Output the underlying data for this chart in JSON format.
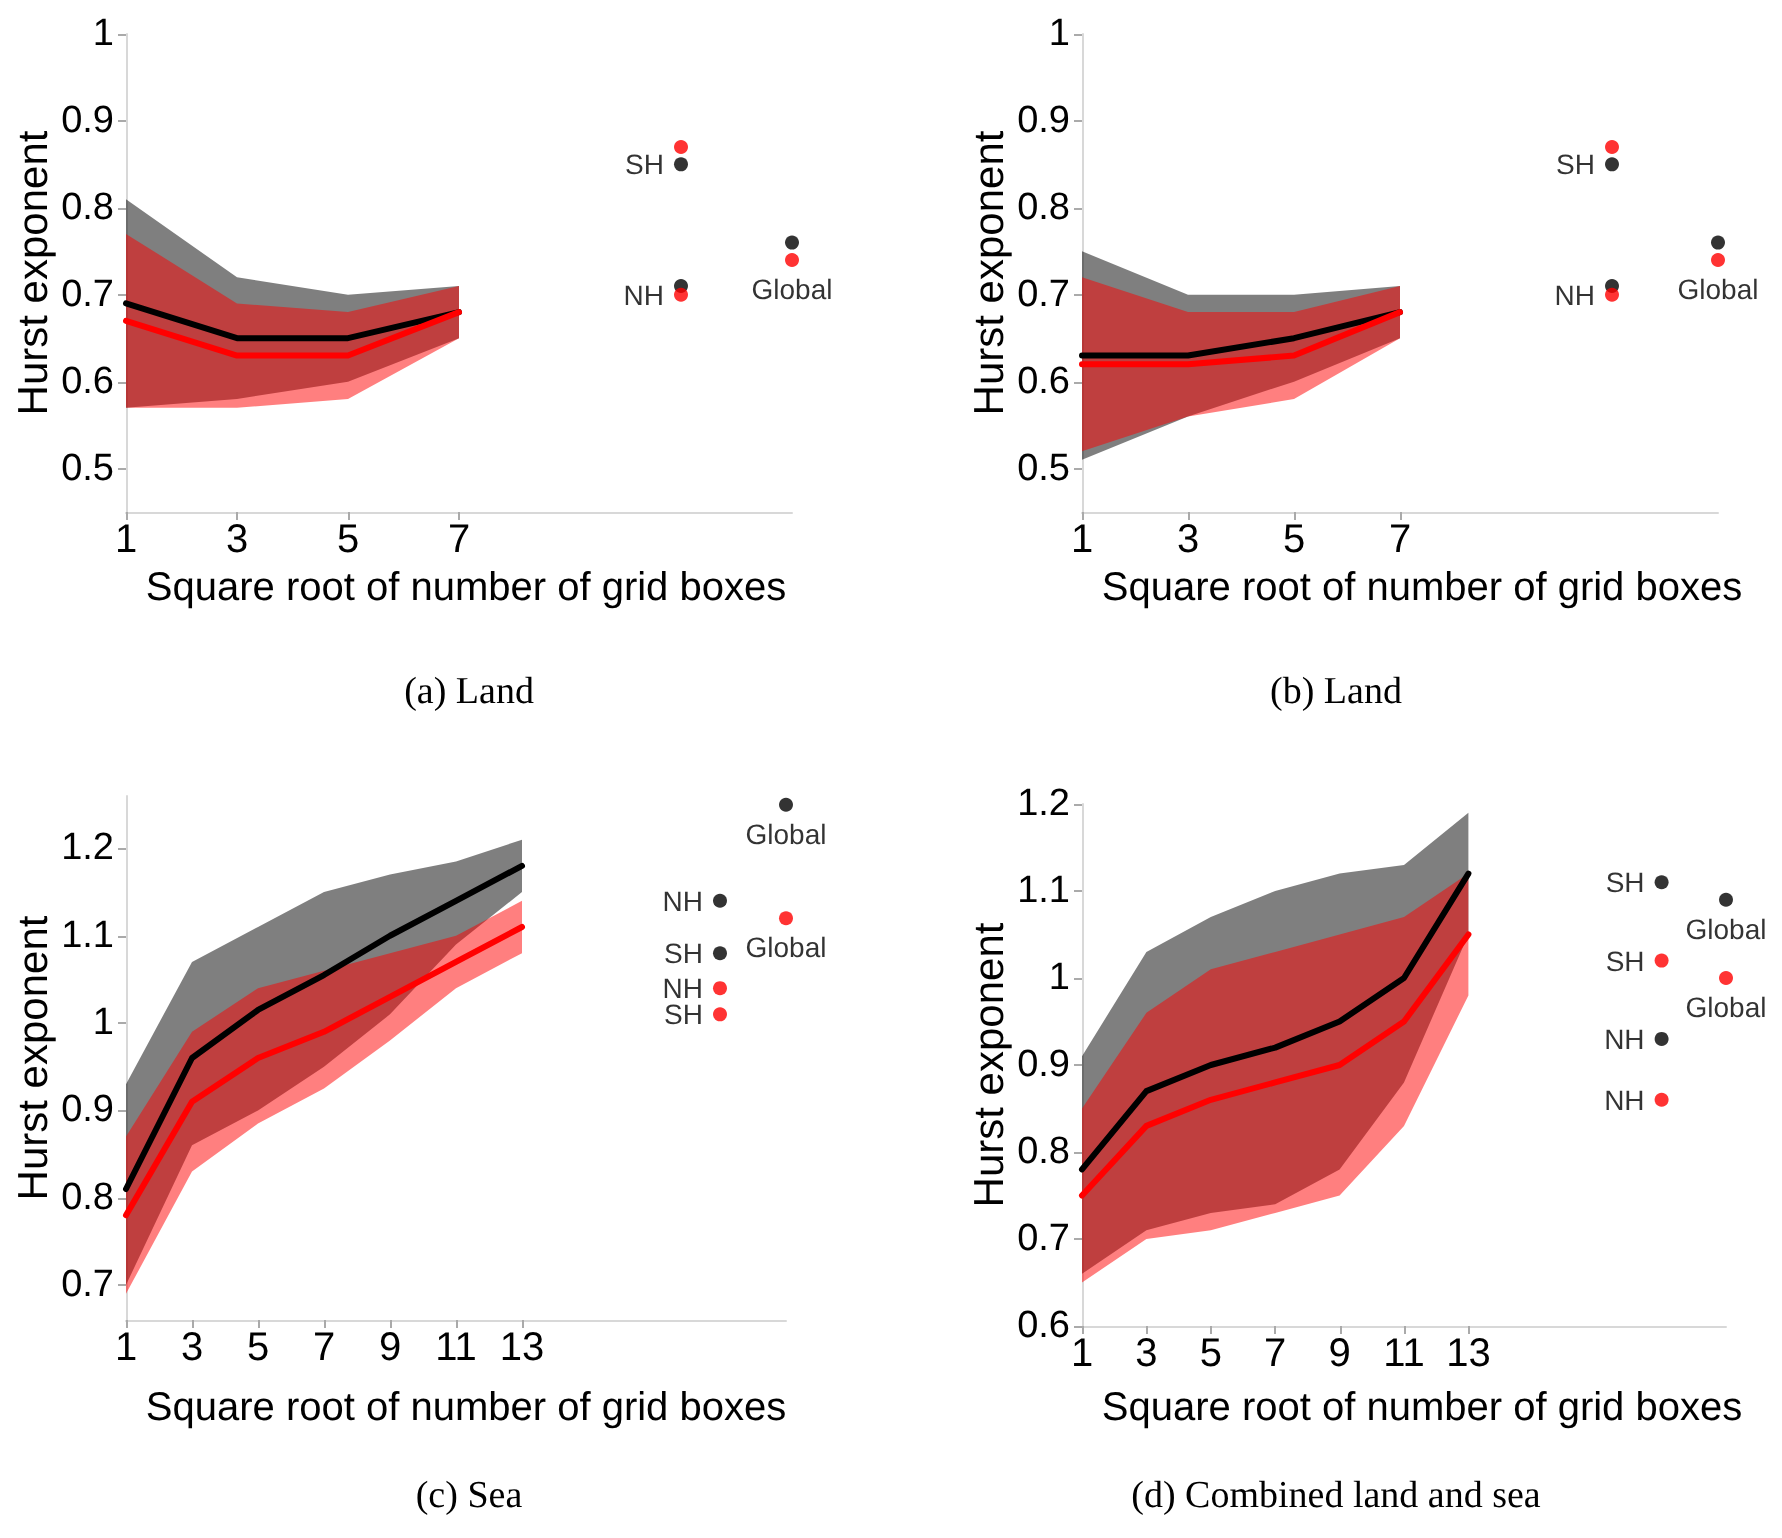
{
  "chart_data": [
    {
      "type": "line",
      "title": "(a) Land",
      "xlabel": "Square root of number of grid boxes",
      "ylabel": "Hurst exponent",
      "x": [
        1,
        3,
        5,
        7
      ],
      "xlim": [
        1,
        13
      ],
      "xticks": [
        1,
        3,
        5,
        7
      ],
      "ylim": [
        0.45,
        1
      ],
      "yticks": [
        0.5,
        0.6,
        0.7,
        0.8,
        0.9,
        1
      ],
      "series": [
        {
          "color": "#000000",
          "values": [
            0.69,
            0.65,
            0.65,
            0.68
          ],
          "lower": [
            0.57,
            0.58,
            0.6,
            0.65
          ],
          "upper": [
            0.81,
            0.72,
            0.7,
            0.71
          ]
        },
        {
          "color": "#ff0000",
          "values": [
            0.67,
            0.63,
            0.63,
            0.68
          ],
          "lower": [
            0.57,
            0.57,
            0.58,
            0.65
          ],
          "upper": [
            0.77,
            0.69,
            0.68,
            0.71
          ]
        },
        {
          "type": "scatter",
          "marker": "circle",
          "color": "#000000",
          "x": [
            11,
            11,
            13
          ],
          "values": [
            0.85,
            0.71,
            0.76
          ],
          "value_labels": [
            "SH",
            null,
            null
          ]
        },
        {
          "type": "scatter",
          "marker": "circle",
          "color": "#ff0000",
          "x": [
            11,
            11,
            13
          ],
          "values": [
            0.87,
            0.7,
            0.74
          ],
          "value_labels": [
            null,
            "NH",
            "Global"
          ]
        }
      ]
    },
    {
      "type": "line",
      "title": "(b) Land",
      "xlabel": "Square root of number of grid boxes",
      "ylabel": "Hurst exponent",
      "x": [
        1,
        3,
        5,
        7
      ],
      "xlim": [
        1,
        13
      ],
      "xticks": [
        1,
        3,
        5,
        7
      ],
      "ylim": [
        0.45,
        1
      ],
      "yticks": [
        0.5,
        0.6,
        0.7,
        0.8,
        0.9,
        1
      ],
      "series": [
        {
          "color": "#000000",
          "values": [
            0.63,
            0.63,
            0.65,
            0.68
          ],
          "lower": [
            0.51,
            0.56,
            0.6,
            0.65
          ],
          "upper": [
            0.75,
            0.7,
            0.7,
            0.71
          ]
        },
        {
          "color": "#ff0000",
          "values": [
            0.62,
            0.62,
            0.63,
            0.68
          ],
          "lower": [
            0.52,
            0.56,
            0.58,
            0.65
          ],
          "upper": [
            0.72,
            0.68,
            0.68,
            0.71
          ]
        },
        {
          "type": "scatter",
          "marker": "circle",
          "color": "#000000",
          "x": [
            11,
            11,
            13
          ],
          "values": [
            0.85,
            0.71,
            0.76
          ],
          "value_labels": [
            "SH",
            null,
            null
          ]
        },
        {
          "type": "scatter",
          "marker": "circle",
          "color": "#ff0000",
          "x": [
            11,
            11,
            13
          ],
          "values": [
            0.87,
            0.7,
            0.74
          ],
          "value_labels": [
            null,
            "NH",
            "Global"
          ]
        }
      ]
    },
    {
      "type": "line",
      "title": "(c) Sea",
      "xlabel": "Square root of number of grid boxes",
      "ylabel": "Hurst exponent",
      "x": [
        1,
        3,
        5,
        7,
        9,
        11,
        13
      ],
      "xlim": [
        1,
        21
      ],
      "xticks": [
        1,
        3,
        5,
        7,
        9,
        11,
        13
      ],
      "ylim": [
        0.66,
        1.26
      ],
      "yticks": [
        0.7,
        0.8,
        0.9,
        1,
        1.1,
        1.2
      ],
      "series": [
        {
          "color": "#000000",
          "values": [
            0.81,
            0.96,
            1.015,
            1.055,
            1.1,
            1.14,
            1.18
          ],
          "lower": [
            0.7,
            0.86,
            0.9,
            0.95,
            1.01,
            1.09,
            1.15
          ],
          "upper": [
            0.93,
            1.07,
            1.11,
            1.15,
            1.17,
            1.185,
            1.21
          ]
        },
        {
          "color": "#ff0000",
          "values": [
            0.78,
            0.91,
            0.96,
            0.99,
            1.03,
            1.07,
            1.11
          ],
          "lower": [
            0.69,
            0.83,
            0.885,
            0.925,
            0.98,
            1.04,
            1.08
          ],
          "upper": [
            0.87,
            0.99,
            1.04,
            1.06,
            1.08,
            1.1,
            1.14
          ]
        },
        {
          "type": "scatter",
          "marker": "circle",
          "color": "#000000",
          "x": [
            19,
            19,
            21
          ],
          "values": [
            1.14,
            1.08,
            1.25
          ],
          "value_labels": [
            "NH",
            "SH",
            "Global"
          ]
        },
        {
          "type": "scatter",
          "marker": "circle",
          "color": "#ff0000",
          "x": [
            19,
            19,
            21
          ],
          "values": [
            1.04,
            1.01,
            1.12
          ],
          "value_labels": [
            "NH",
            "SH",
            "Global"
          ]
        }
      ]
    },
    {
      "type": "line",
      "title": "(d) Combined land and sea",
      "xlabel": "Square root of number of grid boxes",
      "ylabel": "Hurst exponent",
      "x": [
        1,
        3,
        5,
        7,
        9,
        11,
        13
      ],
      "xlim": [
        1,
        21
      ],
      "xticks": [
        1,
        3,
        5,
        7,
        9,
        11,
        13
      ],
      "ylim": [
        0.6,
        1.2
      ],
      "yticks": [
        0.6,
        0.7,
        0.8,
        0.9,
        1,
        1.1,
        1.2
      ],
      "series": [
        {
          "color": "#000000",
          "values": [
            0.78,
            0.87,
            0.9,
            0.92,
            0.95,
            1.0,
            1.12
          ],
          "lower": [
            0.66,
            0.71,
            0.73,
            0.74,
            0.78,
            0.88,
            1.05
          ],
          "upper": [
            0.91,
            1.03,
            1.07,
            1.1,
            1.12,
            1.13,
            1.19
          ]
        },
        {
          "color": "#ff0000",
          "values": [
            0.75,
            0.83,
            0.86,
            0.88,
            0.9,
            0.95,
            1.05
          ],
          "lower": [
            0.65,
            0.7,
            0.71,
            0.73,
            0.75,
            0.83,
            0.98
          ],
          "upper": [
            0.85,
            0.96,
            1.01,
            1.03,
            1.05,
            1.07,
            1.12
          ]
        },
        {
          "type": "scatter",
          "marker": "circle",
          "color": "#000000",
          "x": [
            19,
            21,
            19
          ],
          "values": [
            1.11,
            1.09,
            0.93
          ],
          "value_labels": [
            "SH",
            "Global",
            "NH"
          ]
        },
        {
          "type": "scatter",
          "marker": "circle",
          "color": "#ff0000",
          "x": [
            19,
            21,
            19
          ],
          "values": [
            1.02,
            1.0,
            0.86
          ],
          "value_labels": [
            "SH",
            "Global",
            "NH"
          ]
        }
      ]
    }
  ]
}
